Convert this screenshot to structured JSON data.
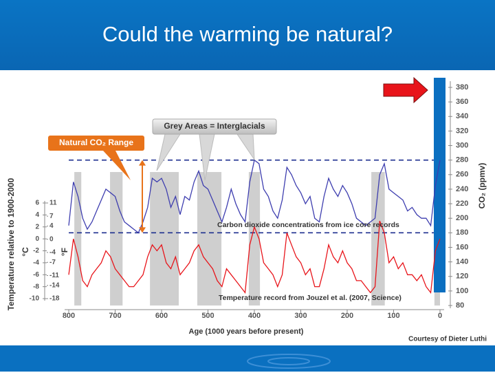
{
  "slide": {
    "title": "Could the warming be natural?",
    "credit": "Courtesy of Dieter Luthi"
  },
  "chart_data": {
    "type": "line",
    "xlabel": "Age (1000 years before present)",
    "ylabel": "Temperature relative to 1900-2000",
    "ylabel_c": "°C",
    "ylabel_f": "°F",
    "y2label": "CO₂ (ppmv)",
    "x": [
      800,
      790,
      780,
      770,
      760,
      750,
      740,
      730,
      720,
      710,
      700,
      690,
      680,
      670,
      660,
      650,
      640,
      630,
      620,
      610,
      600,
      590,
      580,
      570,
      560,
      550,
      540,
      530,
      520,
      510,
      500,
      490,
      480,
      470,
      460,
      450,
      440,
      430,
      420,
      410,
      400,
      390,
      380,
      370,
      360,
      350,
      340,
      330,
      320,
      310,
      300,
      290,
      280,
      270,
      260,
      250,
      240,
      230,
      220,
      210,
      200,
      190,
      180,
      170,
      160,
      150,
      140,
      130,
      120,
      110,
      100,
      90,
      80,
      70,
      60,
      50,
      40,
      30,
      20,
      10,
      0
    ],
    "xlim": [
      800,
      0
    ],
    "xticks": [
      800,
      700,
      600,
      500,
      400,
      300,
      200,
      100,
      0
    ],
    "ylim": [
      -10,
      6
    ],
    "yticks": [
      6,
      4,
      2,
      0,
      -2,
      -4,
      -6,
      -8,
      -10
    ],
    "yflim": [
      -18,
      11
    ],
    "yfticks": [
      11,
      7,
      4,
      0,
      -4,
      -7,
      -11,
      -14,
      -18
    ],
    "y2lim": [
      80,
      380
    ],
    "y2ticks": [
      80,
      100,
      120,
      140,
      160,
      180,
      200,
      220,
      240,
      260,
      280,
      300,
      320,
      340,
      360,
      380
    ],
    "series": [
      {
        "color": "#3d3daf",
        "axis": "y2",
        "values": [
          190,
          250,
          230,
          200,
          185,
          195,
          210,
          225,
          240,
          235,
          230,
          210,
          195,
          190,
          185,
          180,
          195,
          215,
          255,
          250,
          255,
          240,
          215,
          230,
          205,
          230,
          225,
          250,
          265,
          245,
          240,
          225,
          210,
          195,
          215,
          240,
          220,
          205,
          195,
          250,
          280,
          275,
          240,
          230,
          210,
          200,
          225,
          270,
          260,
          245,
          235,
          220,
          230,
          200,
          195,
          230,
          255,
          240,
          230,
          245,
          235,
          220,
          200,
          195,
          190,
          195,
          200,
          260,
          275,
          240,
          235,
          230,
          225,
          210,
          215,
          205,
          200,
          200,
          190,
          245,
          280
        ]
      },
      {
        "color": "#e8141a",
        "axis": "y",
        "values": [
          -6,
          0,
          -3,
          -7,
          -8,
          -6,
          -5,
          -4,
          -2,
          -3,
          -5,
          -6,
          -7,
          -8,
          -8,
          -7,
          -6,
          -3,
          -1,
          -2,
          -1,
          -4,
          -5,
          -3,
          -6,
          -5,
          -4,
          -2,
          -1,
          -3,
          -4,
          -5,
          -7,
          -8,
          -5,
          -6,
          -7,
          -8,
          -9,
          -1,
          2,
          0,
          -4,
          -5,
          -6,
          -8,
          -6,
          1,
          -1,
          -3,
          -4,
          -6,
          -5,
          -8,
          -8,
          -5,
          -1,
          -3,
          -4,
          -2,
          -4,
          -5,
          -7,
          -7,
          -8,
          -9,
          -8,
          3,
          1,
          -4,
          -3,
          -5,
          -4,
          -6,
          -6,
          -7,
          -6,
          -8,
          -9,
          -2,
          0
        ]
      }
    ],
    "interglacials": [
      [
        788,
        773
      ],
      [
        711,
        684
      ],
      [
        625,
        563
      ],
      [
        523,
        471
      ],
      [
        412,
        388
      ],
      [
        148,
        119
      ],
      [
        12,
        0
      ]
    ],
    "natural_range": [
      180,
      280
    ],
    "annotations": {
      "interglacials": "Grey Areas = Interglacials",
      "natural_range": "Natural CO₂ Range",
      "co2": "Carbon dioxide concentrations from ice core records",
      "temperature": "Temperature record from Jouzel et al. (2007, Science)"
    }
  }
}
